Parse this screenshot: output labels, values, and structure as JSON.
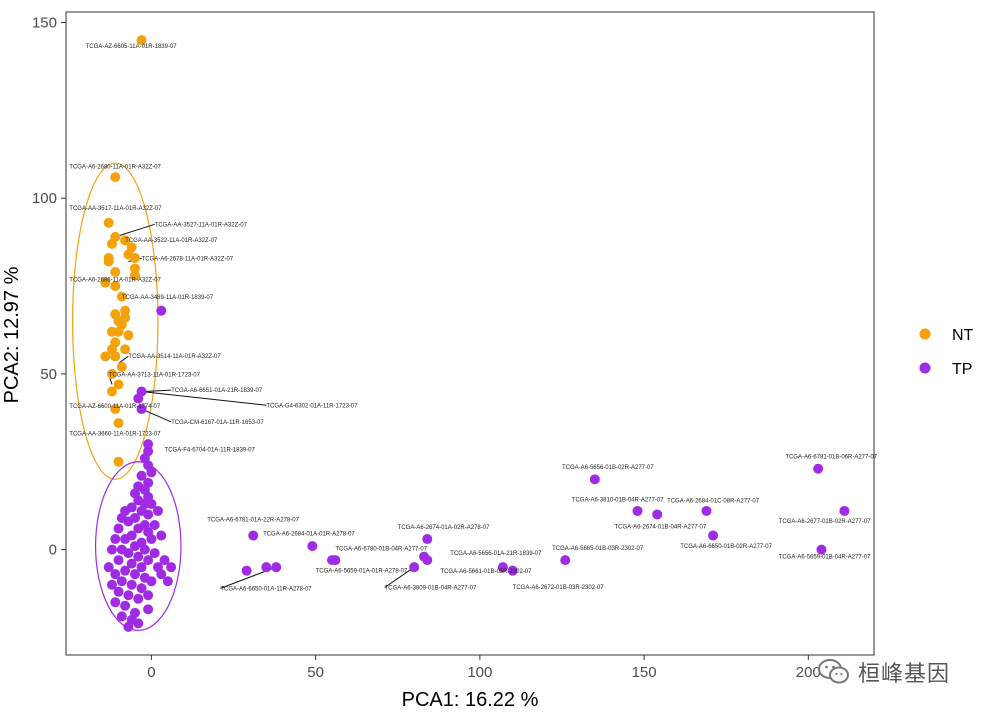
{
  "chart_data": {
    "type": "scatter",
    "xlabel": "PCA1: 16.22 %",
    "ylabel": "PCA2: 12.97 %",
    "xlim": [
      -26,
      220
    ],
    "ylim": [
      -30,
      153
    ],
    "xticks": [
      0,
      50,
      100,
      150,
      200
    ],
    "yticks": [
      0,
      50,
      100,
      150
    ],
    "grid": false,
    "legend_position": "right",
    "series": [
      {
        "name": "NT",
        "color": "#F5A10A",
        "ellipse": {
          "cx": -11,
          "cy": 65,
          "rx": 13,
          "ry": 45
        },
        "points": [
          [
            -3,
            145
          ],
          [
            -11,
            106
          ],
          [
            -13,
            93
          ],
          [
            -12,
            87
          ],
          [
            -11,
            89
          ],
          [
            -13,
            82
          ],
          [
            -11,
            79
          ],
          [
            -7,
            84
          ],
          [
            -5,
            83
          ],
          [
            -5,
            80
          ],
          [
            -5,
            78
          ],
          [
            -14,
            76
          ],
          [
            -11,
            75
          ],
          [
            -9,
            72
          ],
          [
            -8,
            68
          ],
          [
            -11,
            67
          ],
          [
            -10,
            65
          ],
          [
            -8,
            66
          ],
          [
            -9,
            64
          ],
          [
            -12,
            62
          ],
          [
            -10,
            62
          ],
          [
            -7,
            61
          ],
          [
            -11,
            59
          ],
          [
            -12,
            57
          ],
          [
            -8,
            57
          ],
          [
            -11,
            55
          ],
          [
            -14,
            55
          ],
          [
            -9,
            52
          ],
          [
            -12,
            50
          ],
          [
            -10,
            47
          ],
          [
            -12,
            45
          ],
          [
            -11,
            40
          ],
          [
            -10,
            36
          ],
          [
            -10,
            25
          ],
          [
            -13,
            83
          ],
          [
            -8,
            88
          ],
          [
            -6,
            86
          ]
        ]
      },
      {
        "name": "TP",
        "color": "#A02BE4",
        "ellipse": {
          "cx": -4,
          "cy": 1,
          "rx": 13,
          "ry": 24
        },
        "points": [
          [
            3,
            68
          ],
          [
            -3,
            45
          ],
          [
            -4,
            43
          ],
          [
            -3,
            40
          ],
          [
            -1,
            30
          ],
          [
            -1,
            28
          ],
          [
            -2,
            26
          ],
          [
            -1,
            24
          ],
          [
            0,
            22
          ],
          [
            -3,
            21
          ],
          [
            -1,
            19
          ],
          [
            -4,
            18
          ],
          [
            -2,
            17
          ],
          [
            -5,
            16
          ],
          [
            -1,
            15
          ],
          [
            -4,
            14
          ],
          [
            -2,
            13
          ],
          [
            -6,
            12
          ],
          [
            -3,
            11
          ],
          [
            -1,
            10
          ],
          [
            -5,
            9
          ],
          [
            -7,
            8
          ],
          [
            -2,
            7
          ],
          [
            -4,
            6
          ],
          [
            -1,
            5
          ],
          [
            -6,
            4
          ],
          [
            -8,
            3
          ],
          [
            -3,
            2
          ],
          [
            -5,
            1
          ],
          [
            -9,
            0
          ],
          [
            -2,
            0
          ],
          [
            -7,
            -1
          ],
          [
            -4,
            -2
          ],
          [
            -10,
            -3
          ],
          [
            -1,
            -3
          ],
          [
            -6,
            -4
          ],
          [
            -3,
            -5
          ],
          [
            -8,
            -6
          ],
          [
            -11,
            -7
          ],
          [
            -5,
            -7
          ],
          [
            -2,
            -8
          ],
          [
            -9,
            -9
          ],
          [
            -6,
            -10
          ],
          [
            -3,
            -11
          ],
          [
            -10,
            -12
          ],
          [
            -7,
            -13
          ],
          [
            -4,
            -14
          ],
          [
            -8,
            -16
          ],
          [
            -5,
            -18
          ],
          [
            -6,
            -20
          ],
          [
            -7,
            -22
          ],
          [
            -9,
            -19
          ],
          [
            -11,
            -15
          ],
          [
            -12,
            -10
          ],
          [
            -13,
            -5
          ],
          [
            -12,
            0
          ],
          [
            -11,
            3
          ],
          [
            -10,
            6
          ],
          [
            -9,
            9
          ],
          [
            -8,
            11
          ],
          [
            0,
            3
          ],
          [
            1,
            -1
          ],
          [
            2,
            -5
          ],
          [
            0,
            -9
          ],
          [
            -1,
            -13
          ],
          [
            3,
            -7
          ],
          [
            4,
            -3
          ],
          [
            1,
            7
          ],
          [
            2,
            11
          ],
          [
            3,
            4
          ],
          [
            5,
            -9
          ],
          [
            6,
            -5
          ],
          [
            0,
            13
          ],
          [
            -1,
            -17
          ],
          [
            -4,
            -21
          ],
          [
            31,
            4
          ],
          [
            49,
            1
          ],
          [
            55,
            -3
          ],
          [
            56,
            -3
          ],
          [
            29,
            -6
          ],
          [
            35,
            -5
          ],
          [
            38,
            -5
          ],
          [
            84,
            3
          ],
          [
            83,
            -2
          ],
          [
            84,
            -3
          ],
          [
            80,
            -5
          ],
          [
            107,
            -5
          ],
          [
            110,
            -6
          ],
          [
            126,
            -3
          ],
          [
            135,
            20
          ],
          [
            148,
            11
          ],
          [
            154,
            10
          ],
          [
            169,
            11
          ],
          [
            171,
            4
          ],
          [
            203,
            23
          ],
          [
            211,
            11
          ],
          [
            204,
            0
          ]
        ]
      }
    ],
    "annotations": [
      {
        "text": "TCGA-AZ-6605-11A-01R-1839-07",
        "point": [
          -3,
          145
        ],
        "label": [
          -20,
          142.7
        ],
        "leader": false
      },
      {
        "text": "TCGA-A6-2680-11A-01R-A32Z-07",
        "point": [
          -11,
          106
        ],
        "label": [
          -25,
          108.5
        ],
        "leader": false
      },
      {
        "text": "TCGA-AA-3517-11A-01R-A32Z-07",
        "point": [
          -13,
          93
        ],
        "label": [
          -25,
          96.7
        ],
        "leader": false
      },
      {
        "text": "TCGA-AA-3527-11A-01R-A32Z-07",
        "point": [
          -11,
          89
        ],
        "label": [
          1,
          92
        ],
        "leader": true
      },
      {
        "text": "TCGA-AA-3522-11A-01R-A32Z-07",
        "point": [
          -11,
          87
        ],
        "label": [
          -8,
          87.5
        ],
        "leader": false
      },
      {
        "text": "TCGA-A6-2678-11A-01R-A32Z-07",
        "point": [
          -7,
          82
        ],
        "label": [
          -3,
          82.3
        ],
        "leader": true
      },
      {
        "text": "TCGA-A6-2686-11A-01R-A32Z-07",
        "point": [
          -11,
          76
        ],
        "label": [
          -25,
          76.3
        ],
        "leader": false
      },
      {
        "text": "TCGA-AA-3489-11A-01R-1839-07",
        "point": [
          -8,
          72
        ],
        "label": [
          -9,
          71.3
        ],
        "leader": false
      },
      {
        "text": "TCGA-AA-3514-11A-01R-A32Z-07",
        "point": [
          -10,
          53
        ],
        "label": [
          -7,
          54.5
        ],
        "leader": true
      },
      {
        "text": "TCGA-AA-3713-11A-01R-1723-07",
        "point": [
          -12,
          47
        ],
        "label": [
          -13,
          49.3
        ],
        "leader": true
      },
      {
        "text": "TCGA-A6-6651-01A-21R-1839-07",
        "point": [
          -2,
          45
        ],
        "label": [
          6,
          44.8
        ],
        "leader": true
      },
      {
        "text": "TCGA-G4-6302-01A-11R-1723-07",
        "point": [
          -3,
          45
        ],
        "label": [
          35,
          40.5
        ],
        "leader": true
      },
      {
        "text": "TCGA-AZ-6600-11A-01R-1774-07",
        "point": [
          -10,
          40
        ],
        "label": [
          -25,
          40.3
        ],
        "leader": false
      },
      {
        "text": "TCGA-CM-6167-01A-11R-1653-07",
        "point": [
          -3,
          40
        ],
        "label": [
          6,
          35.8
        ],
        "leader": true
      },
      {
        "text": "TCGA-AA-3660-11A-01R-1723-07",
        "point": [
          -10,
          36
        ],
        "label": [
          -25,
          32.5
        ],
        "leader": false
      },
      {
        "text": "TCGA-F4-6704-01A-11R-1839-07",
        "point": [
          -1,
          28
        ],
        "label": [
          4,
          27.9
        ],
        "leader": false
      },
      {
        "text": "TCGA-A6-5656-01B-02R-A277-07",
        "point": [
          135,
          20
        ],
        "label": [
          125,
          22.9
        ],
        "leader": false
      },
      {
        "text": "TCGA-A6-6781-01B-06R-A277-07",
        "point": [
          203,
          23
        ],
        "label": [
          193,
          25.9
        ],
        "leader": false
      },
      {
        "text": "TCGA-A6-3810-01B-04R-A277-07",
        "point": [
          148,
          11
        ],
        "label": [
          128,
          13.7
        ],
        "leader": false
      },
      {
        "text": "TCGA-A6-2684-01C-08R-A277-07",
        "point": [
          169,
          11
        ],
        "label": [
          157,
          13.4
        ],
        "leader": false
      },
      {
        "text": "TCGA-A6-2674-01B-04R-A277-07",
        "point": [
          154,
          10
        ],
        "label": [
          141,
          6
        ],
        "leader": false
      },
      {
        "text": "TCGA-A6-2677-01B-02R-A277-07",
        "point": [
          211,
          11
        ],
        "label": [
          191,
          7.5
        ],
        "leader": false
      },
      {
        "text": "TCGA-A6-6781-01A-22R-A278-07",
        "point": [
          31,
          4
        ],
        "label": [
          17,
          8
        ],
        "leader": false
      },
      {
        "text": "TCGA-A6-2674-01A-02R-A278-07",
        "point": [
          84,
          3
        ],
        "label": [
          75,
          5.9
        ],
        "leader": false
      },
      {
        "text": "TCGA-A6-2684-01A-01R-A278-07",
        "point": [
          49,
          1
        ],
        "label": [
          34,
          4
        ],
        "leader": false
      },
      {
        "text": "TCGA-A6-6650-01B-02R-A277-07",
        "point": [
          171,
          4
        ],
        "label": [
          161,
          0.5
        ],
        "leader": false
      },
      {
        "text": "TCGA-A6-6780-01B-04R-A277-07",
        "point": [
          83,
          -2
        ],
        "label": [
          56,
          -0.2
        ],
        "leader": false
      },
      {
        "text": "TCGA-A6-5665-01B-03R-2302-07",
        "point": [
          126,
          -3
        ],
        "label": [
          122,
          -0.1
        ],
        "leader": false
      },
      {
        "text": "TCGA-A6-5656-01A-21R-1839-07",
        "point": [
          107,
          -5
        ],
        "label": [
          91,
          -1.6
        ],
        "leader": false
      },
      {
        "text": "TCGA-A6-5659-01B-04R-A277-07",
        "point": [
          204,
          0
        ],
        "label": [
          191,
          -2.6
        ],
        "leader": false
      },
      {
        "text": "TCGA-A6-5659-01A-01R-A278-07",
        "point": [
          55,
          -3
        ],
        "label": [
          50,
          -6.5
        ],
        "leader": false
      },
      {
        "text": "TCGA-A6-5661-01B-05R-2302-07",
        "point": [
          80,
          -5
        ],
        "label": [
          88,
          -6.6
        ],
        "leader": false
      },
      {
        "text": "TCGA-A6-6650-01A-11R-A278-07",
        "point": [
          38,
          -5
        ],
        "label": [
          21,
          -11.6
        ],
        "leader": true
      },
      {
        "text": "TCGA-A6-3809-01B-04R-A277-07",
        "point": [
          80,
          -5
        ],
        "label": [
          71,
          -11.4
        ],
        "leader": true
      },
      {
        "text": "TCGA-A6-2672-01B-03R-2302-07",
        "point": [
          110,
          -6
        ],
        "label": [
          110,
          -11.2
        ],
        "leader": false
      }
    ]
  },
  "watermark": {
    "icon": "wechat-icon",
    "text": "桓峰基因"
  }
}
